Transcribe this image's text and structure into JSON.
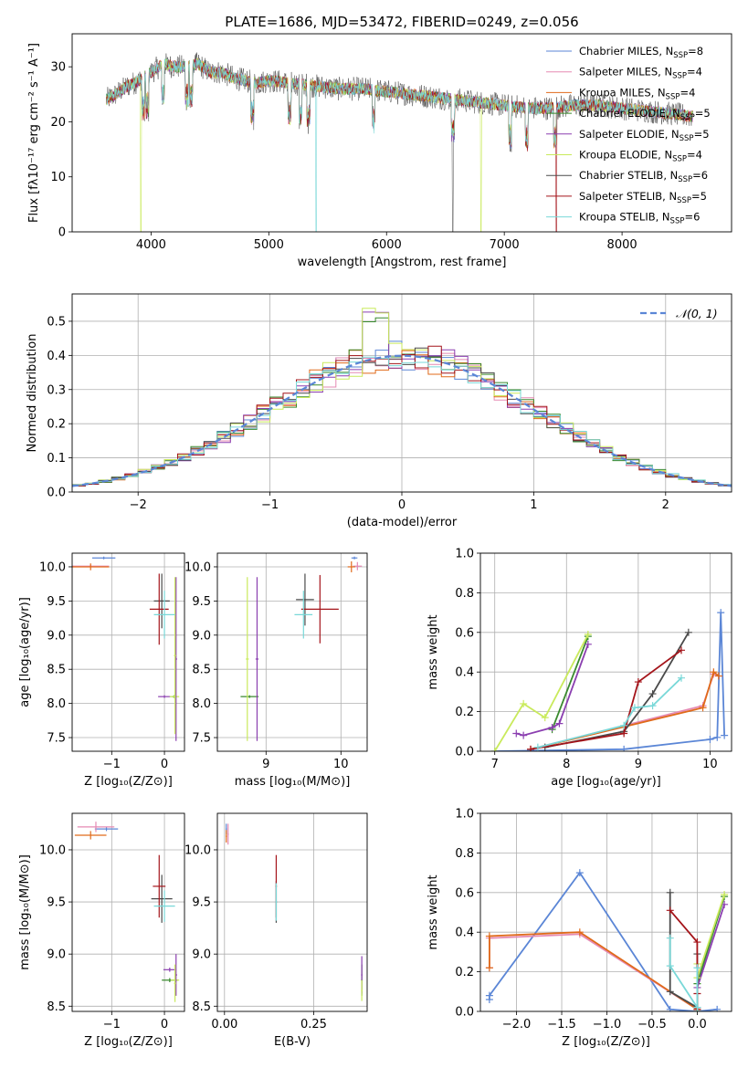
{
  "colors": {
    "Chabrier MILES": "#5b86d6",
    "Salpeter MILES": "#e58ab3",
    "Kroupa MILES": "#e06a1a",
    "Chabrier ELODIE": "#3a8a2e",
    "Salpeter ELODIE": "#8b3fb0",
    "Kroupa ELODIE": "#c9ea5c",
    "Chabrier STELIB": "#4a4a4a",
    "Salpeter STELIB": "#a4141a",
    "Kroupa STELIB": "#79d8d8",
    "normal": "#5b86d6",
    "grid": "#b0b0b0"
  },
  "chart_data": [
    {
      "id": "spectrum",
      "type": "line",
      "title": "PLATE=1686, MJD=53472, FIBERID=0249, z=0.056",
      "xlabel": "wavelength [Angstrom, rest frame]",
      "ylabel": "Flux [fλ10⁻¹⁷ erg cm⁻² s⁻¹ A⁻¹]",
      "xlim": [
        3330,
        8930
      ],
      "ylim": [
        0,
        36
      ],
      "xticks": [
        4000,
        5000,
        6000,
        7000,
        8000
      ],
      "yticks": [
        0,
        10,
        20,
        30
      ],
      "grid": false,
      "legend": "top-right",
      "series": [
        {
          "name": "Chabrier MILES, N",
          "sub": "SSP",
          "suffix": "=8"
        },
        {
          "name": "Salpeter MILES, N",
          "sub": "SSP",
          "suffix": "=4"
        },
        {
          "name": "Kroupa MILES, N",
          "sub": "SSP",
          "suffix": "=4"
        },
        {
          "name": "Chabrier ELODIE, N",
          "sub": "SSP",
          "suffix": "=5"
        },
        {
          "name": "Salpeter ELODIE, N",
          "sub": "SSP",
          "suffix": "=5"
        },
        {
          "name": "Kroupa ELODIE, N",
          "sub": "SSP",
          "suffix": "=4"
        },
        {
          "name": "Chabrier STELIB, N",
          "sub": "SSP",
          "suffix": "=6"
        },
        {
          "name": "Salpeter STELIB, N",
          "sub": "SSP",
          "suffix": "=5"
        },
        {
          "name": "Kroupa STELIB, N",
          "sub": "SSP",
          "suffix": "=6"
        }
      ],
      "continuum": [
        [
          3620,
          24
        ],
        [
          3700,
          25
        ],
        [
          3800,
          26.5
        ],
        [
          3900,
          27.5
        ],
        [
          4000,
          29
        ],
        [
          4100,
          30.5
        ],
        [
          4200,
          30
        ],
        [
          4300,
          30
        ],
        [
          4400,
          30.5
        ],
        [
          4500,
          29
        ],
        [
          4600,
          29
        ],
        [
          4700,
          28
        ],
        [
          4800,
          27.5
        ],
        [
          4900,
          27
        ],
        [
          5000,
          27.5
        ],
        [
          5200,
          27
        ],
        [
          5400,
          26.5
        ],
        [
          5600,
          26
        ],
        [
          5800,
          26
        ],
        [
          6000,
          25.5
        ],
        [
          6200,
          25
        ],
        [
          6400,
          24.5
        ],
        [
          6600,
          24
        ],
        [
          6800,
          23.5
        ],
        [
          7000,
          23
        ],
        [
          7200,
          22.5
        ],
        [
          7400,
          22.5
        ],
        [
          7600,
          23
        ],
        [
          7800,
          23
        ],
        [
          8000,
          22.5
        ],
        [
          8200,
          22
        ],
        [
          8400,
          21.5
        ],
        [
          8600,
          21
        ]
      ],
      "absorption_lines": [
        3934,
        3969,
        4102,
        4304,
        4340,
        4861,
        5175,
        5270,
        5335,
        5890,
        6563,
        7050,
        7190,
        7430
      ],
      "dropouts": [
        {
          "x": 3910,
          "series": "Kroupa ELODIE"
        },
        {
          "x": 5400,
          "series": "Kroupa STELIB"
        },
        {
          "x": 6560,
          "series": "Chabrier STELIB"
        },
        {
          "x": 6800,
          "series": "Kroupa ELODIE"
        },
        {
          "x": 7440,
          "series": "Salpeter STELIB"
        }
      ]
    },
    {
      "id": "residuals",
      "type": "step",
      "xlabel": "(data-model)/error",
      "ylabel": "Normed distribution",
      "xlim": [
        -2.5,
        2.5
      ],
      "ylim": [
        0,
        0.58
      ],
      "xticks": [
        -2,
        -1,
        0,
        1,
        2
      ],
      "yticks": [
        0.0,
        0.1,
        0.2,
        0.3,
        0.4,
        0.5
      ],
      "grid": true,
      "legend": "top-right",
      "normal_label": "𝒩(0, 1)",
      "bin_width": 0.1,
      "series_names": [
        "Chabrier MILES",
        "Salpeter MILES",
        "Kroupa MILES",
        "Chabrier ELODIE",
        "Salpeter ELODIE",
        "Kroupa ELODIE",
        "Chabrier STELIB",
        "Salpeter STELIB",
        "Kroupa STELIB"
      ]
    },
    {
      "id": "age-z",
      "type": "scatter",
      "xlabel": "Z [log₁₀(Z/Z⊙)]",
      "ylabel": "age  [log₁₀(age/yr)]",
      "xlim": [
        -1.75,
        0.38
      ],
      "ylim": [
        7.3,
        10.2
      ],
      "xticks": [
        -1,
        0
      ],
      "yticks": [
        7.5,
        8.0,
        8.5,
        9.0,
        9.5,
        10.0
      ],
      "grid": true,
      "points": [
        {
          "s": "Chabrier MILES",
          "x": -1.15,
          "y": 10.13,
          "xerr": 0.22,
          "yerr": 0.02
        },
        {
          "s": "Salpeter MILES",
          "x": -1.4,
          "y": 10.01,
          "xerr": 0.35,
          "yerr": 0.02
        },
        {
          "s": "Kroupa MILES",
          "x": -1.4,
          "y": 10.0,
          "xerr": 0.35,
          "yerr": 0.05
        },
        {
          "s": "Chabrier ELODIE",
          "x": 0.18,
          "y": 8.1,
          "xerr": 0.05,
          "yerr": 0.02
        },
        {
          "s": "Salpeter ELODIE",
          "x": 0.0,
          "y": 8.1,
          "xerr": 0.12,
          "yerr": 0.02
        },
        {
          "s": "Kroupa ELODIE",
          "x": 0.19,
          "y": 8.1,
          "xerr": 0.09,
          "yerr": 0.02
        },
        {
          "s": "Salpeter ELODIE",
          "x": 0.22,
          "y": 8.65,
          "xerr": 0.02,
          "yerr": 1.2
        },
        {
          "s": "Kroupa ELODIE",
          "x": 0.2,
          "y": 8.7,
          "xerr": 0.02,
          "yerr": 1.15
        },
        {
          "s": "Chabrier STELIB",
          "x": -0.05,
          "y": 9.5,
          "xerr": 0.15,
          "yerr": 0.4
        },
        {
          "s": "Salpeter STELIB",
          "x": -0.1,
          "y": 9.38,
          "xerr": 0.18,
          "yerr": 0.52
        },
        {
          "s": "Kroupa STELIB",
          "x": 0.0,
          "y": 9.3,
          "xerr": 0.2,
          "yerr": 0.35
        }
      ]
    },
    {
      "id": "age-mass",
      "type": "scatter",
      "xlabel": "mass [log₁₀(M/M⊙)]",
      "ylabel": "",
      "xlim": [
        8.35,
        10.35
      ],
      "ylim": [
        7.3,
        10.2
      ],
      "xticks": [
        9,
        10
      ],
      "yticks": [
        7.5,
        8.0,
        8.5,
        9.0,
        9.5,
        10.0
      ],
      "grid": true,
      "points": [
        {
          "s": "Chabrier MILES",
          "x": 10.18,
          "y": 10.13,
          "xerr": 0.04,
          "yerr": 0.02
        },
        {
          "s": "Salpeter MILES",
          "x": 10.22,
          "y": 10.01,
          "xerr": 0.06,
          "yerr": 0.06
        },
        {
          "s": "Kroupa MILES",
          "x": 10.14,
          "y": 10.0,
          "xerr": 0.05,
          "yerr": 0.08
        },
        {
          "s": "Chabrier ELODIE",
          "x": 8.78,
          "y": 8.1,
          "xerr": 0.12,
          "yerr": 0.02
        },
        {
          "s": "Kroupa ELODIE",
          "x": 8.75,
          "y": 8.65,
          "xerr": 0.02,
          "yerr": 1.2
        },
        {
          "s": "Salpeter ELODIE",
          "x": 8.88,
          "y": 8.65,
          "xerr": 0.02,
          "yerr": 1.2
        },
        {
          "s": "Chabrier STELIB",
          "x": 9.52,
          "y": 9.52,
          "xerr": 0.12,
          "yerr": 0.38
        },
        {
          "s": "Salpeter STELIB",
          "x": 9.72,
          "y": 9.38,
          "xerr": 0.25,
          "yerr": 0.5
        },
        {
          "s": "Kroupa STELIB",
          "x": 9.5,
          "y": 9.3,
          "xerr": 0.12,
          "yerr": 0.35
        }
      ]
    },
    {
      "id": "mw-age",
      "type": "line",
      "xlabel": "age  [log₁₀(age/yr)]",
      "ylabel": "mass weight",
      "xlim": [
        6.8,
        10.3
      ],
      "ylim": [
        0,
        1.0
      ],
      "xticks": [
        7,
        8,
        9,
        10
      ],
      "yticks": [
        0.0,
        0.2,
        0.4,
        0.6,
        0.8,
        1.0
      ],
      "grid": true,
      "series": [
        {
          "s": "Chabrier MILES",
          "points": [
            [
              7.0,
              0.0
            ],
            [
              8.8,
              0.01
            ],
            [
              10.0,
              0.06
            ],
            [
              10.1,
              0.07
            ],
            [
              10.15,
              0.7
            ],
            [
              10.2,
              0.08
            ]
          ]
        },
        {
          "s": "Salpeter MILES",
          "points": [
            [
              7.5,
              0.01
            ],
            [
              9.9,
              0.23
            ],
            [
              10.05,
              0.39
            ],
            [
              10.12,
              0.38
            ]
          ]
        },
        {
          "s": "Kroupa MILES",
          "points": [
            [
              7.5,
              0.01
            ],
            [
              9.9,
              0.22
            ],
            [
              10.05,
              0.4
            ],
            [
              10.12,
              0.38
            ]
          ]
        },
        {
          "s": "Chabrier ELODIE",
          "points": [
            [
              7.8,
              0.11
            ],
            [
              8.3,
              0.58
            ]
          ]
        },
        {
          "s": "Salpeter ELODIE",
          "points": [
            [
              7.3,
              0.09
            ],
            [
              7.4,
              0.08
            ],
            [
              7.8,
              0.12
            ],
            [
              7.9,
              0.14
            ],
            [
              8.3,
              0.54
            ]
          ]
        },
        {
          "s": "Kroupa ELODIE",
          "points": [
            [
              7.0,
              0.0
            ],
            [
              7.4,
              0.24
            ],
            [
              7.7,
              0.17
            ],
            [
              8.3,
              0.59
            ]
          ]
        },
        {
          "s": "Chabrier STELIB",
          "points": [
            [
              7.7,
              0.02
            ],
            [
              8.8,
              0.1
            ],
            [
              9.2,
              0.29
            ],
            [
              9.7,
              0.6
            ]
          ]
        },
        {
          "s": "Salpeter STELIB",
          "points": [
            [
              7.5,
              0.01
            ],
            [
              8.8,
              0.09
            ],
            [
              9.0,
              0.35
            ],
            [
              9.6,
              0.51
            ]
          ]
        },
        {
          "s": "Kroupa STELIB",
          "points": [
            [
              7.6,
              0.02
            ],
            [
              8.8,
              0.13
            ],
            [
              8.95,
              0.22
            ],
            [
              9.2,
              0.23
            ],
            [
              9.6,
              0.37
            ]
          ]
        }
      ]
    },
    {
      "id": "mass-z",
      "type": "scatter",
      "xlabel": "Z [log₁₀(Z/Z⊙)]",
      "ylabel": "mass [log₁₀(M/M⊙)]",
      "xlim": [
        -1.75,
        0.38
      ],
      "ylim": [
        8.45,
        10.35
      ],
      "xticks": [
        -1,
        0
      ],
      "yticks": [
        8.5,
        9.0,
        9.5,
        10.0
      ],
      "grid": true,
      "points": [
        {
          "s": "Chabrier MILES",
          "x": -1.1,
          "y": 10.2,
          "xerr": 0.22,
          "yerr": 0.02
        },
        {
          "s": "Salpeter MILES",
          "x": -1.3,
          "y": 10.22,
          "xerr": 0.35,
          "yerr": 0.05
        },
        {
          "s": "Kroupa MILES",
          "x": -1.4,
          "y": 10.14,
          "xerr": 0.3,
          "yerr": 0.04
        },
        {
          "s": "Chabrier ELODIE",
          "x": 0.1,
          "y": 8.75,
          "xerr": 0.15,
          "yerr": 0.02
        },
        {
          "s": "Salpeter ELODIE",
          "x": 0.1,
          "y": 8.85,
          "xerr": 0.12,
          "yerr": 0.02
        },
        {
          "s": "Kroupa ELODIE",
          "x": 0.2,
          "y": 8.75,
          "xerr": 0.08,
          "yerr": 0.02
        },
        {
          "s": "Salpeter ELODIE",
          "x": 0.22,
          "y": 8.8,
          "xerr": 0.02,
          "yerr": 0.2
        },
        {
          "s": "Kroupa ELODIE",
          "x": 0.2,
          "y": 8.72,
          "xerr": 0.02,
          "yerr": 0.18
        },
        {
          "s": "Chabrier STELIB",
          "x": -0.05,
          "y": 9.53,
          "xerr": 0.2,
          "yerr": 0.23
        },
        {
          "s": "Salpeter STELIB",
          "x": -0.1,
          "y": 9.65,
          "xerr": 0.12,
          "yerr": 0.3
        },
        {
          "s": "Kroupa STELIB",
          "x": 0.0,
          "y": 9.46,
          "xerr": 0.2,
          "yerr": 0.15
        }
      ]
    },
    {
      "id": "mass-ebv",
      "type": "scatter",
      "xlabel": "E(B-V)",
      "ylabel": "",
      "xlim": [
        -0.02,
        0.4
      ],
      "ylim": [
        8.45,
        10.35
      ],
      "xticks": [
        0.0,
        0.25
      ],
      "yticks": [
        8.5,
        9.0,
        9.5,
        10.0
      ],
      "grid": true,
      "points": [
        {
          "s": "Chabrier MILES",
          "x": 0.005,
          "y": 10.2,
          "xerr": 0.002,
          "yerr": 0.05
        },
        {
          "s": "Salpeter MILES",
          "x": 0.01,
          "y": 10.15,
          "xerr": 0.002,
          "yerr": 0.1
        },
        {
          "s": "Kroupa MILES",
          "x": 0.005,
          "y": 10.13,
          "xerr": 0.002,
          "yerr": 0.06
        },
        {
          "s": "Chabrier ELODIE",
          "x": 0.385,
          "y": 8.75,
          "xerr": 0.002,
          "yerr": 0.15
        },
        {
          "s": "Salpeter ELODIE",
          "x": 0.385,
          "y": 8.8,
          "xerr": 0.002,
          "yerr": 0.18
        },
        {
          "s": "Kroupa ELODIE",
          "x": 0.385,
          "y": 8.65,
          "xerr": 0.002,
          "yerr": 0.1
        },
        {
          "s": "Chabrier STELIB",
          "x": 0.145,
          "y": 9.5,
          "xerr": 0.002,
          "yerr": 0.2
        },
        {
          "s": "Salpeter STELIB",
          "x": 0.145,
          "y": 9.65,
          "xerr": 0.002,
          "yerr": 0.3
        },
        {
          "s": "Kroupa STELIB",
          "x": 0.145,
          "y": 9.5,
          "xerr": 0.002,
          "yerr": 0.18
        }
      ]
    },
    {
      "id": "mw-z",
      "type": "line",
      "xlabel": "Z [log₁₀(Z/Z⊙)]",
      "ylabel": "mass weight",
      "xlim": [
        -2.4,
        0.38
      ],
      "ylim": [
        0,
        1.0
      ],
      "xticks": [
        -2.0,
        -1.5,
        -1.0,
        -0.5,
        0.0
      ],
      "yticks": [
        0.0,
        0.2,
        0.4,
        0.6,
        0.8,
        1.0
      ],
      "grid": true,
      "series": [
        {
          "s": "Chabrier MILES",
          "points": [
            [
              -2.3,
              0.06
            ],
            [
              -2.3,
              0.08
            ],
            [
              -1.3,
              0.7
            ],
            [
              -0.3,
              0.01
            ],
            [
              0.0,
              0.0
            ],
            [
              0.22,
              0.01
            ]
          ]
        },
        {
          "s": "Salpeter MILES",
          "points": [
            [
              -2.3,
              0.22
            ],
            [
              -2.3,
              0.37
            ],
            [
              -1.3,
              0.39
            ],
            [
              0.0,
              0.01
            ]
          ]
        },
        {
          "s": "Kroupa MILES",
          "points": [
            [
              -2.3,
              0.22
            ],
            [
              -2.3,
              0.38
            ],
            [
              -1.3,
              0.4
            ],
            [
              0.0,
              0.01
            ]
          ]
        },
        {
          "s": "Chabrier ELODIE",
          "points": [
            [
              0.0,
              0.14
            ],
            [
              0.3,
              0.58
            ]
          ]
        },
        {
          "s": "Salpeter ELODIE",
          "points": [
            [
              0.0,
              0.12
            ],
            [
              0.3,
              0.54
            ]
          ]
        },
        {
          "s": "Kroupa ELODIE",
          "points": [
            [
              0.0,
              0.0
            ],
            [
              0.0,
              0.24
            ],
            [
              0.0,
              0.17
            ],
            [
              0.3,
              0.59
            ]
          ]
        },
        {
          "s": "Chabrier STELIB",
          "points": [
            [
              -0.3,
              0.6
            ],
            [
              -0.3,
              0.1
            ],
            [
              0.0,
              0.02
            ],
            [
              0.0,
              0.29
            ]
          ]
        },
        {
          "s": "Salpeter STELIB",
          "points": [
            [
              -0.3,
              0.51
            ],
            [
              0.0,
              0.35
            ],
            [
              0.0,
              0.09
            ],
            [
              0.0,
              0.01
            ]
          ]
        },
        {
          "s": "Kroupa STELIB",
          "points": [
            [
              -0.3,
              0.37
            ],
            [
              -0.3,
              0.23
            ],
            [
              0.0,
              0.02
            ],
            [
              0.0,
              0.22
            ]
          ]
        }
      ]
    }
  ]
}
